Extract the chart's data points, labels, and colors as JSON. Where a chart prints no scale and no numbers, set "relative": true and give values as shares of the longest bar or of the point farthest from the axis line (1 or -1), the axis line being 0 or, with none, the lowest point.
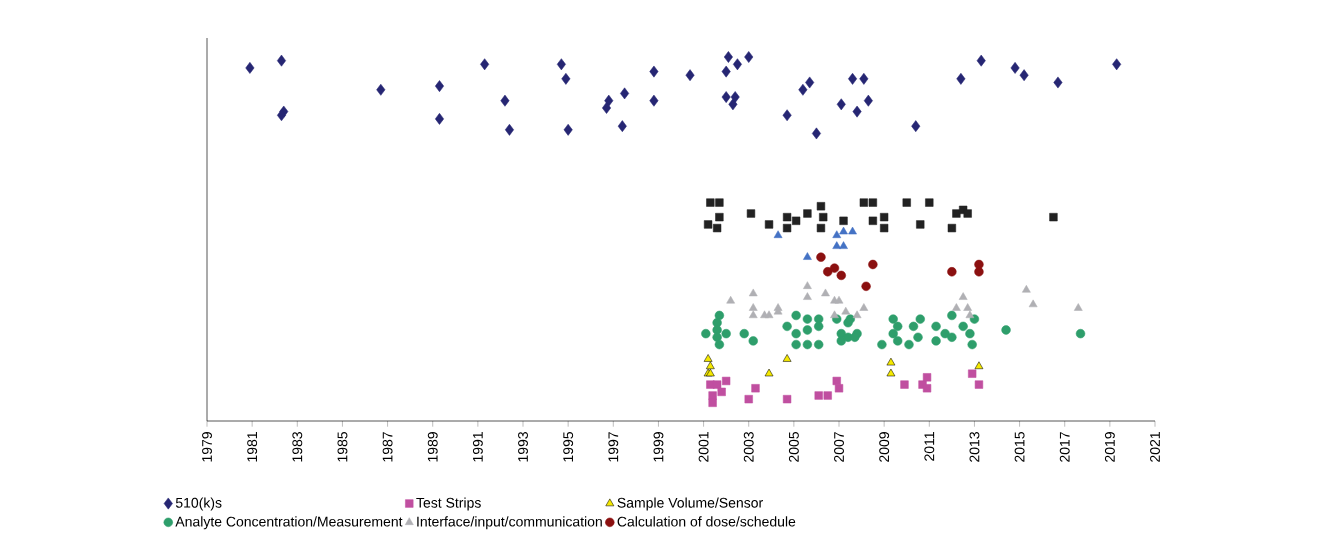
{
  "chart_data": {
    "type": "scatter",
    "relative": true,
    "xlim": [
      1979,
      2021
    ],
    "xticks": [
      1979,
      1981,
      1983,
      1985,
      1987,
      1989,
      1991,
      1993,
      1995,
      1997,
      1999,
      2001,
      2003,
      2005,
      2007,
      2009,
      2011,
      2013,
      2015,
      2017,
      2019,
      2021
    ],
    "legend": "bottom",
    "grid": false,
    "series": [
      {
        "name": "510(k)s",
        "color": "#262673",
        "marker": "diamond",
        "x": [
          1980.9,
          1982.3,
          1982.4,
          1982.3,
          1986.7,
          1989.3,
          1989.3,
          1991.3,
          1992.2,
          1992.4,
          1994.7,
          1994.9,
          1995.0,
          1996.8,
          1996.7,
          1997.5,
          1997.4,
          1998.8,
          1998.8,
          2000.4,
          2002.1,
          2002.5,
          2003.0,
          2002.0,
          2002.0,
          2002.3,
          2002.4,
          2004.7,
          2006.0,
          2005.4,
          2005.7,
          2007.6,
          2008.1,
          2007.1,
          2007.8,
          2008.3,
          2010.4,
          2012.4,
          2013.3,
          2014.8,
          2015.2,
          2016.7,
          2019.3
        ],
        "values": [
          0.97,
          0.99,
          0.85,
          0.84,
          0.91,
          0.92,
          0.83,
          0.98,
          0.88,
          0.8,
          0.98,
          0.94,
          0.8,
          0.88,
          0.86,
          0.9,
          0.81,
          0.96,
          0.88,
          0.95,
          1.0,
          0.98,
          1.0,
          0.96,
          0.89,
          0.87,
          0.89,
          0.84,
          0.79,
          0.91,
          0.93,
          0.94,
          0.94,
          0.87,
          0.85,
          0.88,
          0.81,
          0.94,
          0.99,
          0.97,
          0.95,
          0.93,
          0.98
        ]
      },
      {
        "name": "Test Strips",
        "color": "#c04fa0",
        "marker": "square",
        "x": [
          2001.3,
          2001.6,
          2002.0,
          2001.8,
          2001.4,
          2001.4,
          2003.3,
          2003.0,
          2004.7,
          2006.1,
          2006.5,
          2006.9,
          2007.0,
          2009.9,
          2010.7,
          2010.9,
          2010.9,
          2012.9,
          2013.2
        ],
        "values": [
          0.1,
          0.1,
          0.11,
          0.08,
          0.07,
          0.05,
          0.09,
          0.06,
          0.06,
          0.07,
          0.07,
          0.11,
          0.09,
          0.1,
          0.1,
          0.09,
          0.12,
          0.13,
          0.1
        ]
      },
      {
        "name": "Sample Volume/Sensor",
        "color": "#f5e900",
        "marker": "triangle",
        "x": [
          2001.2,
          2001.3,
          2001.2,
          2001.3,
          2004.7,
          2003.9,
          2009.3,
          2009.3,
          2013.2
        ],
        "values": [
          0.17,
          0.15,
          0.13,
          0.13,
          0.17,
          0.13,
          0.16,
          0.13,
          0.15
        ]
      },
      {
        "name": "Analyte Concentration/Measurement",
        "color": "#2e9e6b",
        "marker": "circle",
        "x": [
          2001.7,
          2001.6,
          2001.6,
          2002.0,
          2001.1,
          2001.6,
          2001.7,
          2002.8,
          2003.2,
          2005.1,
          2005.6,
          2006.1,
          2004.7,
          2005.1,
          2005.6,
          2006.1,
          2005.1,
          2005.6,
          2006.1,
          2006.9,
          2007.4,
          2007.1,
          2007.1,
          2007.4,
          2007.8,
          2007.5,
          2007.7,
          2008.9,
          2009.4,
          2009.6,
          2009.4,
          2009.6,
          2010.1,
          2010.3,
          2010.6,
          2010.5,
          2011.3,
          2011.3,
          2011.7,
          2012.0,
          2012.0,
          2012.5,
          2012.8,
          2012.9,
          2013.0,
          2014.4,
          2017.7
        ],
        "values": [
          0.29,
          0.27,
          0.25,
          0.24,
          0.24,
          0.23,
          0.21,
          0.24,
          0.22,
          0.29,
          0.28,
          0.28,
          0.26,
          0.24,
          0.25,
          0.26,
          0.21,
          0.21,
          0.21,
          0.28,
          0.27,
          0.24,
          0.22,
          0.23,
          0.24,
          0.28,
          0.23,
          0.21,
          0.28,
          0.26,
          0.24,
          0.22,
          0.21,
          0.26,
          0.28,
          0.23,
          0.26,
          0.22,
          0.24,
          0.29,
          0.23,
          0.26,
          0.24,
          0.21,
          0.28,
          0.25,
          0.24
        ]
      },
      {
        "name": "Interface/input/communication",
        "color": "#b0b0b4",
        "marker": "triangle",
        "x": [
          2002.2,
          2003.2,
          2003.2,
          2003.2,
          2003.7,
          2003.9,
          2004.3,
          2004.3,
          2005.6,
          2005.6,
          2006.4,
          2006.8,
          2007.0,
          2006.8,
          2007.3,
          2007.8,
          2008.1,
          2012.5,
          2012.2,
          2012.7,
          2012.8,
          2015.3,
          2015.6,
          2017.6
        ],
        "values": [
          0.33,
          0.35,
          0.31,
          0.29,
          0.29,
          0.29,
          0.31,
          0.3,
          0.37,
          0.34,
          0.35,
          0.33,
          0.33,
          0.29,
          0.3,
          0.29,
          0.31,
          0.34,
          0.31,
          0.31,
          0.29,
          0.36,
          0.32,
          0.31
        ]
      },
      {
        "name": "Calculation of dose/schedule",
        "color": "#8b1010",
        "marker": "circle",
        "x": [
          2006.2,
          2006.5,
          2006.8,
          2007.1,
          2008.5,
          2008.2,
          2012.0,
          2013.2,
          2013.2
        ],
        "values": [
          0.45,
          0.41,
          0.42,
          0.4,
          0.43,
          0.37,
          0.41,
          0.43,
          0.41
        ]
      },
      {
        "color": "#222222",
        "marker": "square",
        "x": [
          2001.3,
          2001.7,
          2001.2,
          2001.7,
          2001.6,
          2003.1,
          2003.9,
          2004.7,
          2004.7,
          2005.1,
          2005.6,
          2006.2,
          2006.3,
          2006.2,
          2007.2,
          2008.1,
          2008.5,
          2008.5,
          2009.0,
          2009.0,
          2010.0,
          2011.0,
          2010.6,
          2012.0,
          2012.2,
          2012.5,
          2012.7,
          2016.5
        ],
        "values": [
          0.6,
          0.6,
          0.54,
          0.56,
          0.53,
          0.57,
          0.54,
          0.56,
          0.53,
          0.55,
          0.57,
          0.59,
          0.56,
          0.53,
          0.55,
          0.6,
          0.6,
          0.55,
          0.56,
          0.53,
          0.6,
          0.6,
          0.54,
          0.53,
          0.57,
          0.58,
          0.57,
          0.56
        ]
      },
      {
        "color": "#4472c4",
        "marker": "triangle",
        "x": [
          2004.3,
          2006.9,
          2007.2,
          2007.6,
          2006.9,
          2007.2,
          2005.6
        ],
        "values": [
          0.51,
          0.51,
          0.52,
          0.52,
          0.48,
          0.48,
          0.45
        ]
      }
    ]
  }
}
